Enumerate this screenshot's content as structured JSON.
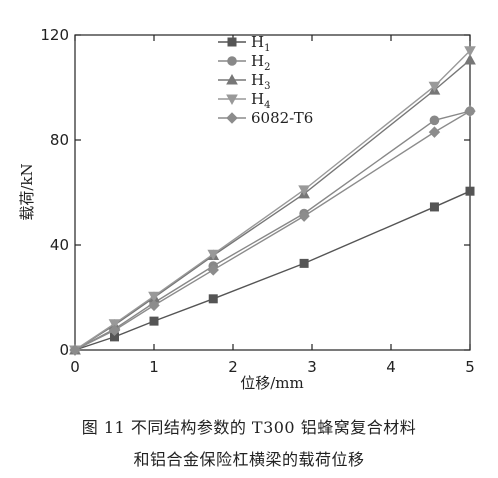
{
  "chart_data": {
    "type": "line",
    "x": [
      0,
      0.5,
      1,
      1.75,
      2.9,
      4.55,
      5
    ],
    "xlim": [
      0,
      5
    ],
    "ylim": [
      0,
      120
    ],
    "xticks": [
      0,
      1,
      2,
      3,
      4,
      5
    ],
    "yticks": [
      0,
      40,
      80,
      120
    ],
    "xlabel": "位移/mm",
    "ylabel": "载荷/kN",
    "legend_position": "top-center",
    "series": [
      {
        "name": "H",
        "sub": "1",
        "marker": "square",
        "color": "#555555",
        "values": [
          0,
          5,
          11,
          19.5,
          33,
          54.5,
          60.5
        ]
      },
      {
        "name": "H",
        "sub": "2",
        "marker": "circle",
        "color": "#888888",
        "values": [
          0,
          8,
          18,
          32,
          52,
          87.5,
          91
        ]
      },
      {
        "name": "H",
        "sub": "3",
        "marker": "triangle-up",
        "color": "#777777",
        "values": [
          0,
          9.5,
          20,
          36,
          59.5,
          99,
          110.5
        ]
      },
      {
        "name": "H",
        "sub": "4",
        "marker": "triangle-down",
        "color": "#999999",
        "values": [
          0,
          10,
          20.5,
          36.5,
          61,
          100.5,
          114
        ]
      },
      {
        "name": "6082-T6",
        "sub": "",
        "marker": "diamond",
        "color": "#8c8c8c",
        "values": [
          0,
          7.5,
          17,
          30.5,
          51,
          83,
          91
        ]
      }
    ]
  },
  "caption": {
    "line1": "图 11   不同结构参数的 T300 铝蜂窝复合材料",
    "line2": "和铝合金保险杠横梁的载荷位移"
  }
}
